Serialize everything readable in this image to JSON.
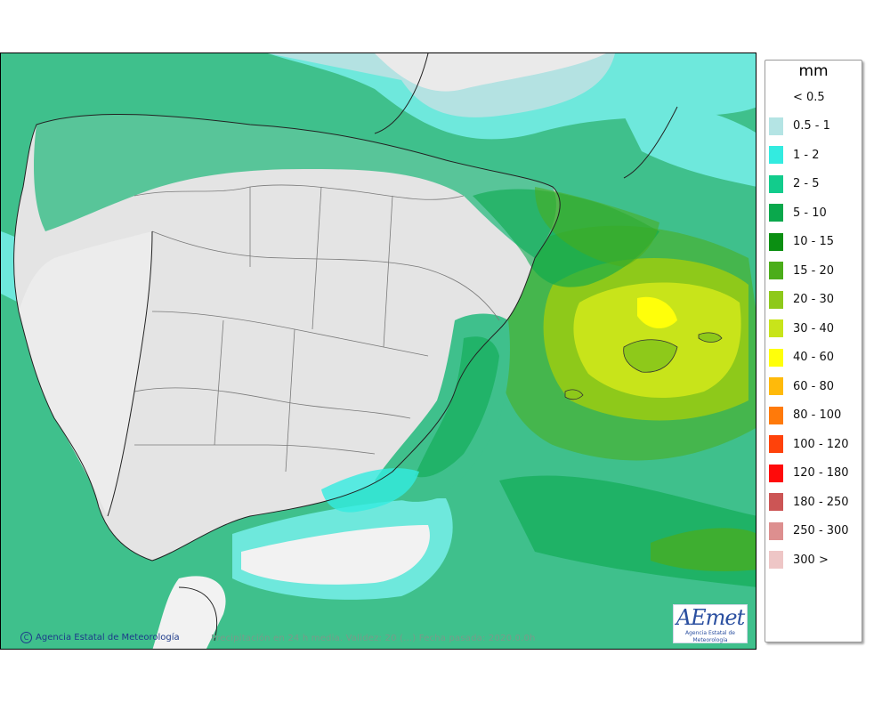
{
  "map": {
    "copyright_text": "Agencia Estatal de Meteorología",
    "caption_text": "Precipitación en 24 h media. Validez: 20 (…) Fecha pasada: 2020.0.0h",
    "logo_text": "AEmet",
    "logo_subtext": "Agencia Estatal de Meteorología"
  },
  "legend": {
    "title": "mm",
    "items": [
      {
        "label": "< 0.5",
        "color": "#ffffff"
      },
      {
        "label": "0.5 - 1",
        "color": "#b4e4e4"
      },
      {
        "label": "1 - 2",
        "color": "#33ebe0"
      },
      {
        "label": "2 - 5",
        "color": "#12cc8c"
      },
      {
        "label": "5 - 10",
        "color": "#0aa84c"
      },
      {
        "label": "10 - 15",
        "color": "#0b8f12"
      },
      {
        "label": "15 - 20",
        "color": "#4bad1a"
      },
      {
        "label": "20 - 30",
        "color": "#8ec91a"
      },
      {
        "label": "30 - 40",
        "color": "#c8e41a"
      },
      {
        "label": "40 - 60",
        "color": "#ffff0a"
      },
      {
        "label": "60 - 80",
        "color": "#ffba0a"
      },
      {
        "label": "80 - 100",
        "color": "#ff7a0a"
      },
      {
        "label": "100 - 120",
        "color": "#ff420a"
      },
      {
        "label": "120 - 180",
        "color": "#ff0a0a"
      },
      {
        "label": "180 - 250",
        "color": "#cc5555"
      },
      {
        "label": "250 - 300",
        "color": "#dd8f8f"
      },
      {
        "label": "300 >",
        "color": "#eec6c6"
      }
    ]
  }
}
